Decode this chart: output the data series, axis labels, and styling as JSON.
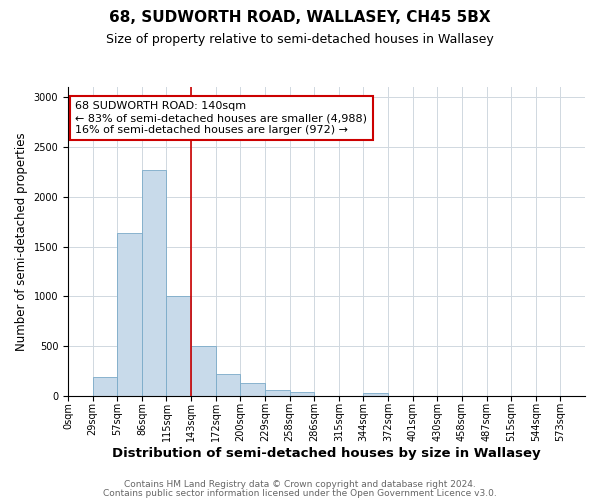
{
  "title_line1": "68, SUDWORTH ROAD, WALLASEY, CH45 5BX",
  "title_line2": "Size of property relative to semi-detached houses in Wallasey",
  "xlabel": "Distribution of semi-detached houses by size in Wallasey",
  "ylabel": "Number of semi-detached properties",
  "categories": [
    "0sqm",
    "29sqm",
    "57sqm",
    "86sqm",
    "115sqm",
    "143sqm",
    "172sqm",
    "200sqm",
    "229sqm",
    "258sqm",
    "286sqm",
    "315sqm",
    "344sqm",
    "372sqm",
    "401sqm",
    "430sqm",
    "458sqm",
    "487sqm",
    "515sqm",
    "544sqm",
    "573sqm"
  ],
  "values": [
    0,
    185,
    1640,
    2270,
    1000,
    500,
    215,
    130,
    60,
    35,
    0,
    0,
    30,
    0,
    0,
    0,
    0,
    0,
    0,
    0,
    0
  ],
  "bar_color": "#c8daea",
  "bar_edge_color": "#7aaac8",
  "vline_color": "#cc0000",
  "vline_x_index": 5,
  "annotation_text": "68 SUDWORTH ROAD: 140sqm\n← 83% of semi-detached houses are smaller (4,988)\n16% of semi-detached houses are larger (972) →",
  "annotation_box_facecolor": "white",
  "annotation_box_edgecolor": "#cc0000",
  "ylim": [
    0,
    3100
  ],
  "yticks": [
    0,
    500,
    1000,
    1500,
    2000,
    2500,
    3000
  ],
  "footer1": "Contains HM Land Registry data © Crown copyright and database right 2024.",
  "footer2": "Contains public sector information licensed under the Open Government Licence v3.0.",
  "title1_fontsize": 11,
  "title2_fontsize": 9,
  "xlabel_fontsize": 9.5,
  "ylabel_fontsize": 8.5,
  "tick_fontsize": 7,
  "annotation_fontsize": 8,
  "footer_fontsize": 6.5,
  "grid_color": "#d0d8e0"
}
